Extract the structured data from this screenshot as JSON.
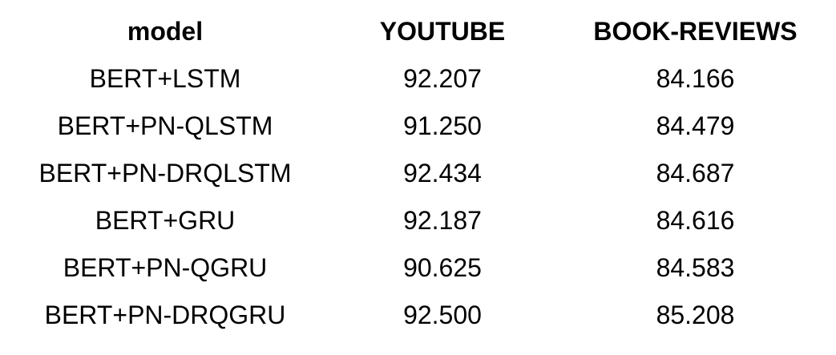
{
  "chart_data": {
    "type": "table",
    "columns": [
      "model",
      "YOUTUBE",
      "BOOK-REVIEWS"
    ],
    "rows": [
      [
        "BERT+LSTM",
        "92.207",
        "84.166"
      ],
      [
        "BERT+PN-QLSTM",
        "91.250",
        "84.479"
      ],
      [
        "BERT+PN-DRQLSTM",
        "92.434",
        "84.687"
      ],
      [
        "BERT+GRU",
        "92.187",
        "84.616"
      ],
      [
        "BERT+PN-QGRU",
        "90.625",
        "84.583"
      ],
      [
        "BERT+PN-DRQGRU",
        "92.500",
        "85.208"
      ]
    ]
  }
}
